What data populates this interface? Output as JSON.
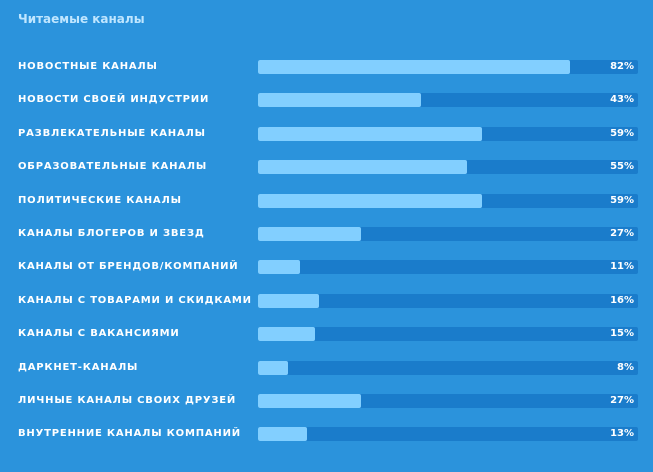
{
  "chart_data": {
    "type": "bar",
    "orientation": "horizontal",
    "title": "Читаемые каналы",
    "categories": [
      "НОВОСТНЫЕ КАНАЛЫ",
      "НОВОСТИ СВОЕЙ ИНДУСТРИИ",
      "РАЗВЛЕКАТЕЛЬНЫЕ КАНАЛЫ",
      "ОБРАЗОВАТЕЛЬНЫЕ КАНАЛЫ",
      "ПОЛИТИЧЕСКИЕ КАНАЛЫ",
      "КАНАЛЫ БЛОГЕРОВ И ЗВЕЗД",
      "КАНАЛЫ ОТ БРЕНДОВ/КОМПАНИЙ",
      "КАНАЛЫ С ТОВАРАМИ И СКИДКАМИ",
      "КАНАЛЫ С ВАКАНСИЯМИ",
      "ДАРКНЕТ-КАНАЛЫ",
      "ЛИЧНЫЕ КАНАЛЫ СВОИХ ДРУЗЕЙ",
      "ВНУТРЕННИЕ КАНАЛЫ КОМПАНИЙ"
    ],
    "values": [
      82,
      43,
      59,
      55,
      59,
      27,
      11,
      16,
      15,
      8,
      27,
      13
    ],
    "value_labels": [
      "82%",
      "43%",
      "59%",
      "55%",
      "59%",
      "27%",
      "11%",
      "16%",
      "15%",
      "8%",
      "27%",
      "13%"
    ],
    "xlim": [
      0,
      100
    ],
    "grid": false,
    "legend": "none",
    "colors": {
      "background": "#2b93dc",
      "track": "#1a7ccb",
      "fill": "#82cfff",
      "title": "#bfe6ff",
      "text": "#ffffff"
    }
  }
}
